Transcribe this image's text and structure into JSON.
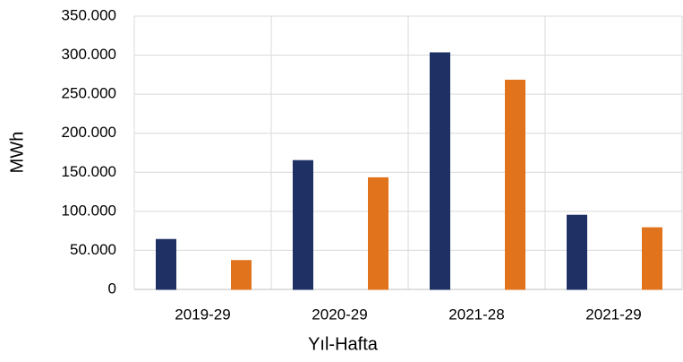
{
  "chart_data": {
    "type": "bar",
    "categories": [
      "2019-29",
      "2020-29",
      "2021-28",
      "2021-29"
    ],
    "series": [
      {
        "color": "#1f3064",
        "values": [
          64000,
          165000,
          303000,
          95000
        ]
      },
      {
        "color": "#e0731c",
        "values": [
          37000,
          143000,
          268000,
          79000
        ]
      }
    ],
    "xlabel": "Yıl-Hafta",
    "ylabel": "MWh",
    "ylim": [
      0,
      350000
    ],
    "yticks": [
      0,
      {
        "value": 50000,
        "label": "50.000"
      },
      {
        "value": 100000,
        "label": "100.000"
      },
      {
        "value": 150000,
        "label": "150.000"
      },
      {
        "value": 200000,
        "label": "200.000"
      },
      {
        "value": 250000,
        "label": "250.000"
      },
      {
        "value": 300000,
        "label": "300.000"
      },
      {
        "value": 350000,
        "label": "350.000"
      }
    ],
    "grid": true
  }
}
